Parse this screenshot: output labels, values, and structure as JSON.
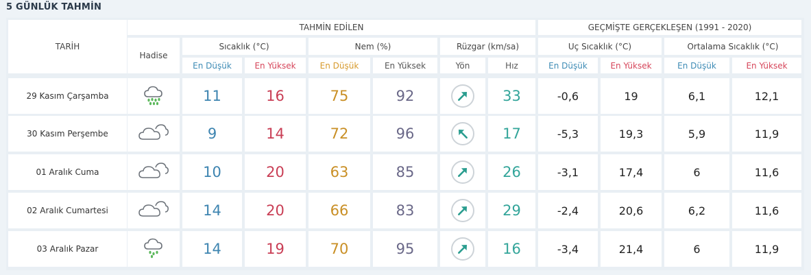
{
  "page_title": "5 GÜNLÜK TAHMİN",
  "headers": {
    "tarih": "TARİH",
    "tahmin_edilen": "TAHMİN EDİLEN",
    "gecmiste": "GEÇMİŞTE GERÇEKLEŞEN (1991 - 2020)",
    "hadise": "Hadise",
    "sicaklik": "Sıcaklık (°C)",
    "nem": "Nem (%)",
    "ruzgar": "Rüzgar (km/sa)",
    "uc_sicaklik": "Uç Sıcaklık (°C)",
    "ortalama_sicaklik": "Ortalama Sıcaklık (°C)",
    "en_dusuk": "En Düşük",
    "en_yuksek": "En Yüksek",
    "yon": "Yön",
    "hiz": "Hız"
  },
  "colors": {
    "low_accent": "#3d84b0",
    "high_accent": "#c93e55",
    "humidity_low": "#c98f25",
    "humidity_high": "#6a6888",
    "wind_speed": "#33a59a",
    "wind_arrow": "#2a9d8f"
  },
  "rows": [
    {
      "date": "29 Kasım Çarşamba",
      "icon": "rain-cloud-icon",
      "temp_low": "11",
      "temp_high": "16",
      "hum_low": "75",
      "hum_high": "92",
      "wind_dir": "north-east",
      "wind_speed": "33",
      "ext_low": "-0,6",
      "ext_high": "19",
      "avg_low": "6,1",
      "avg_high": "12,1"
    },
    {
      "date": "30 Kasım Perşembe",
      "icon": "cloud-icon",
      "temp_low": "9",
      "temp_high": "14",
      "hum_low": "72",
      "hum_high": "96",
      "wind_dir": "north-west",
      "wind_speed": "17",
      "ext_low": "-5,3",
      "ext_high": "19,3",
      "avg_low": "5,9",
      "avg_high": "11,9"
    },
    {
      "date": "01 Aralık Cuma",
      "icon": "cloud-icon",
      "temp_low": "10",
      "temp_high": "20",
      "hum_low": "63",
      "hum_high": "85",
      "wind_dir": "north-east",
      "wind_speed": "26",
      "ext_low": "-3,1",
      "ext_high": "17,4",
      "avg_low": "6",
      "avg_high": "11,6"
    },
    {
      "date": "02 Aralık Cumartesi",
      "icon": "cloud-icon",
      "temp_low": "14",
      "temp_high": "20",
      "hum_low": "66",
      "hum_high": "83",
      "wind_dir": "north-east",
      "wind_speed": "29",
      "ext_low": "-2,4",
      "ext_high": "20,6",
      "avg_low": "6,2",
      "avg_high": "11,6"
    },
    {
      "date": "03 Aralık Pazar",
      "icon": "light-rain-cloud-icon",
      "temp_low": "14",
      "temp_high": "19",
      "hum_low": "70",
      "hum_high": "95",
      "wind_dir": "north-east",
      "wind_speed": "16",
      "ext_low": "-3,4",
      "ext_high": "21,4",
      "avg_low": "6",
      "avg_high": "11,9"
    }
  ]
}
